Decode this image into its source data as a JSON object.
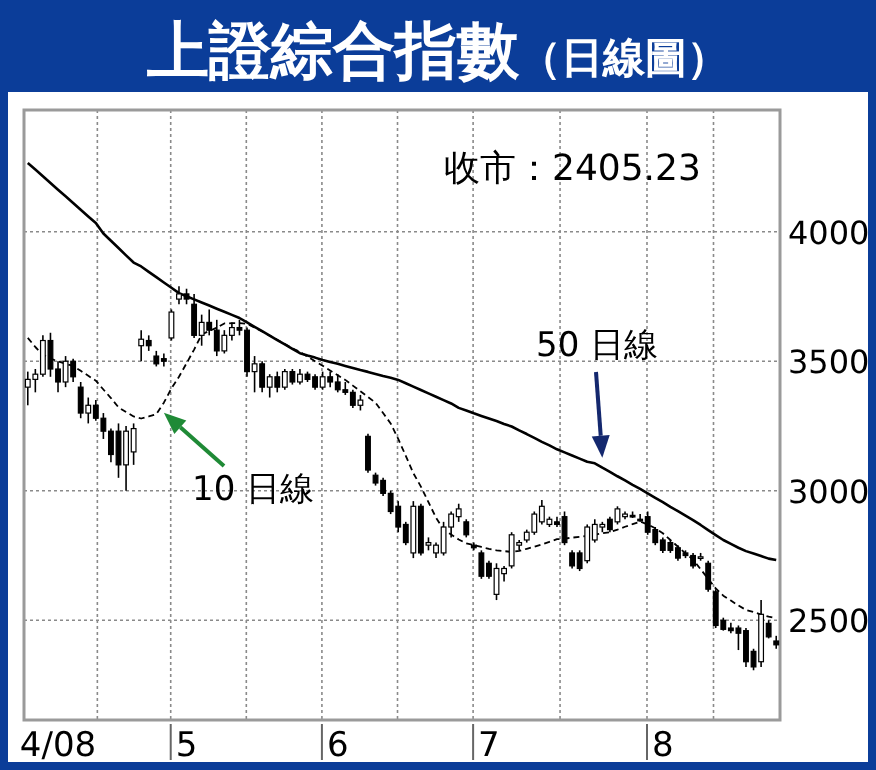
{
  "chart_data": {
    "type": "candlestick",
    "title": "上證綜合指數",
    "subtitle": "（日線圖）",
    "annotations": [
      "收市：2405.23"
    ],
    "categories": [
      null,
      null,
      null,
      null,
      "4/08",
      null,
      null,
      null,
      null,
      null,
      null,
      null,
      null,
      null,
      null,
      null,
      null,
      null,
      null,
      null,
      null,
      "5",
      null,
      null,
      null,
      null,
      null,
      null,
      null,
      null,
      null,
      null,
      null,
      null,
      null,
      null,
      null,
      null,
      null,
      null,
      null,
      "6",
      null,
      null,
      null,
      null,
      null,
      null,
      null,
      null,
      null,
      null,
      null,
      null,
      null,
      null,
      null,
      null,
      null,
      null,
      null,
      "7",
      null,
      null,
      null,
      null,
      null,
      null,
      null,
      null,
      null,
      null,
      null,
      null,
      null,
      null,
      null,
      null,
      null,
      null,
      null,
      null,
      null,
      null,
      "8",
      null,
      null,
      null,
      null,
      null,
      null,
      null,
      null,
      null,
      null,
      null,
      null,
      null,
      null,
      null
    ],
    "ylim": [
      2115,
      4470
    ],
    "yticks": [
      2500,
      3000,
      3500,
      4000
    ],
    "grid": true,
    "ohlc": [
      [
        3400,
        3460,
        3330,
        3430
      ],
      [
        3430,
        3470,
        3380,
        3450
      ],
      [
        3450,
        3600,
        3440,
        3580
      ],
      [
        3580,
        3610,
        3440,
        3470
      ],
      [
        3470,
        3500,
        3380,
        3420
      ],
      [
        3420,
        3520,
        3400,
        3500
      ],
      [
        3500,
        3510,
        3420,
        3440
      ],
      [
        3400,
        3420,
        3280,
        3300
      ],
      [
        3300,
        3360,
        3260,
        3330
      ],
      [
        3330,
        3350,
        3270,
        3280
      ],
      [
        3280,
        3300,
        3200,
        3230
      ],
      [
        3230,
        3240,
        3110,
        3140
      ],
      [
        3230,
        3260,
        3050,
        3100
      ],
      [
        3100,
        3250,
        3000,
        3230
      ],
      [
        3150,
        3260,
        3100,
        3240
      ],
      [
        3560,
        3620,
        3500,
        3585
      ],
      [
        3580,
        3600,
        3540,
        3560
      ],
      [
        3520,
        3540,
        3480,
        3490
      ],
      [
        3510,
        3530,
        3480,
        3500
      ],
      [
        3590,
        3700,
        3580,
        3690
      ],
      [
        3740,
        3790,
        3720,
        3760
      ],
      [
        3760,
        3780,
        3720,
        3740
      ],
      [
        3720,
        3760,
        3590,
        3600
      ],
      [
        3600,
        3680,
        3560,
        3650
      ],
      [
        3650,
        3700,
        3600,
        3620
      ],
      [
        3620,
        3660,
        3520,
        3540
      ],
      [
        3540,
        3620,
        3530,
        3600
      ],
      [
        3600,
        3650,
        3580,
        3630
      ],
      [
        3630,
        3660,
        3600,
        3620
      ],
      [
        3620,
        3630,
        3440,
        3460
      ],
      [
        3460,
        3520,
        3380,
        3490
      ],
      [
        3490,
        3500,
        3380,
        3400
      ],
      [
        3400,
        3450,
        3360,
        3440
      ],
      [
        3440,
        3460,
        3380,
        3400
      ],
      [
        3400,
        3470,
        3390,
        3460
      ],
      [
        3460,
        3470,
        3410,
        3420
      ],
      [
        3420,
        3470,
        3410,
        3450
      ],
      [
        3450,
        3460,
        3420,
        3430
      ],
      [
        3440,
        3450,
        3390,
        3400
      ],
      [
        3400,
        3460,
        3390,
        3440
      ],
      [
        3440,
        3460,
        3400,
        3420
      ],
      [
        3420,
        3450,
        3380,
        3390
      ],
      [
        3390,
        3420,
        3370,
        3380
      ],
      [
        3380,
        3390,
        3320,
        3330
      ],
      [
        3330,
        3370,
        3310,
        3350
      ],
      [
        3210,
        3220,
        3070,
        3080
      ],
      [
        3060,
        3070,
        3020,
        3030
      ],
      [
        3040,
        3050,
        2980,
        2990
      ],
      [
        2990,
        3000,
        2910,
        2920
      ],
      [
        2940,
        2960,
        2840,
        2860
      ],
      [
        2870,
        2880,
        2790,
        2800
      ],
      [
        2760,
        2960,
        2740,
        2940
      ],
      [
        2940,
        2950,
        2750,
        2760
      ],
      [
        2790,
        2820,
        2770,
        2800
      ],
      [
        2760,
        2800,
        2740,
        2790
      ],
      [
        2760,
        2880,
        2750,
        2860
      ],
      [
        2860,
        2920,
        2820,
        2910
      ],
      [
        2900,
        2950,
        2880,
        2930
      ],
      [
        2880,
        2890,
        2820,
        2830
      ],
      [
        2790,
        2800,
        2770,
        2780
      ],
      [
        2760,
        2770,
        2660,
        2670
      ],
      [
        2720,
        2730,
        2660,
        2670
      ],
      [
        2600,
        2720,
        2578,
        2700
      ],
      [
        2680,
        2710,
        2650,
        2700
      ],
      [
        2710,
        2840,
        2700,
        2830
      ],
      [
        2790,
        2810,
        2770,
        2800
      ],
      [
        2810,
        2850,
        2800,
        2840
      ],
      [
        2840,
        2920,
        2830,
        2910
      ],
      [
        2880,
        2964,
        2870,
        2940
      ],
      [
        2870,
        2900,
        2860,
        2890
      ],
      [
        2880,
        2900,
        2860,
        2870
      ],
      [
        2900,
        2920,
        2790,
        2800
      ],
      [
        2760,
        2770,
        2700,
        2710
      ],
      [
        2760,
        2770,
        2690,
        2700
      ],
      [
        2730,
        2870,
        2720,
        2860
      ],
      [
        2810,
        2890,
        2800,
        2870
      ],
      [
        2860,
        2880,
        2840,
        2870
      ],
      [
        2890,
        2900,
        2840,
        2850
      ],
      [
        2880,
        2940,
        2870,
        2930
      ],
      [
        2900,
        2920,
        2890,
        2910
      ],
      [
        2905,
        2920,
        2895,
        2900
      ],
      [
        2890,
        2910,
        2880,
        2885
      ],
      [
        2900,
        2920,
        2830,
        2840
      ],
      [
        2850,
        2860,
        2790,
        2800
      ],
      [
        2810,
        2820,
        2760,
        2770
      ],
      [
        2800,
        2810,
        2760,
        2770
      ],
      [
        2780,
        2790,
        2730,
        2740
      ],
      [
        2760,
        2770,
        2740,
        2750
      ],
      [
        2750,
        2760,
        2700,
        2710
      ],
      [
        2740,
        2760,
        2730,
        2745
      ],
      [
        2720,
        2730,
        2610,
        2620
      ],
      [
        2610,
        2620,
        2470,
        2480
      ],
      [
        2500,
        2510,
        2460,
        2465
      ],
      [
        2470,
        2490,
        2450,
        2460
      ],
      [
        2470,
        2480,
        2385,
        2450
      ],
      [
        2460,
        2470,
        2320,
        2340
      ],
      [
        2380,
        2390,
        2307,
        2320
      ],
      [
        2340,
        2578,
        2320,
        2523
      ],
      [
        2488,
        2500,
        2430,
        2436
      ],
      [
        2420,
        2440,
        2390,
        2405.23
      ]
    ],
    "series": [
      {
        "name": "10 日線",
        "type": "line",
        "line_style": "dashed",
        "color": "#000000",
        "values": [
          3590,
          3555,
          3525,
          3510,
          3500,
          3490,
          3482,
          3463,
          3444,
          3425,
          3391,
          3358,
          3322,
          3304,
          3287,
          3279,
          3287,
          3296,
          3340,
          3395,
          3440,
          3492,
          3545,
          3603,
          3617,
          3630,
          3646,
          3647,
          3647,
          3645,
          3630,
          3615,
          3599,
          3583,
          3566,
          3550,
          3536,
          3518,
          3500,
          3483,
          3464,
          3446,
          3428,
          3406,
          3384,
          3362,
          3340,
          3300,
          3260,
          3200,
          3135,
          3068,
          3016,
          2956,
          2896,
          2850,
          2831,
          2812,
          2797,
          2790,
          2783,
          2776,
          2770,
          2767,
          2764,
          2768,
          2776,
          2784,
          2793,
          2803,
          2813,
          2815,
          2819,
          2822,
          2826,
          2831,
          2836,
          2840,
          2850,
          2861,
          2871,
          2881,
          2870,
          2855,
          2836,
          2810,
          2784,
          2758,
          2734,
          2697,
          2660,
          2623,
          2595,
          2576,
          2557,
          2540,
          2532,
          2522,
          2514,
          2508
        ]
      },
      {
        "name": "50 日線",
        "type": "line",
        "line_style": "solid",
        "color": "#000000",
        "values": [
          4265,
          4240,
          4214,
          4188,
          4162,
          4137,
          4111,
          4085,
          4059,
          4034,
          3993,
          3965,
          3937,
          3909,
          3881,
          3866,
          3845,
          3825,
          3804,
          3784,
          3763,
          3751,
          3739,
          3727,
          3715,
          3703,
          3691,
          3679,
          3667,
          3650,
          3633,
          3616,
          3599,
          3582,
          3565,
          3548,
          3531,
          3522,
          3514,
          3505,
          3497,
          3490,
          3482,
          3474,
          3466,
          3459,
          3451,
          3443,
          3436,
          3428,
          3415,
          3402,
          3389,
          3376,
          3363,
          3350,
          3337,
          3320,
          3310,
          3299,
          3289,
          3279,
          3269,
          3258,
          3248,
          3233,
          3219,
          3204,
          3189,
          3175,
          3160,
          3148,
          3136,
          3124,
          3112,
          3106,
          3089,
          3073,
          3056,
          3040,
          3023,
          3007,
          2990,
          2973,
          2956,
          2938,
          2921,
          2904,
          2887,
          2868,
          2848,
          2829,
          2810,
          2795,
          2780,
          2767,
          2758,
          2748,
          2738,
          2733
        ]
      }
    ]
  }
}
